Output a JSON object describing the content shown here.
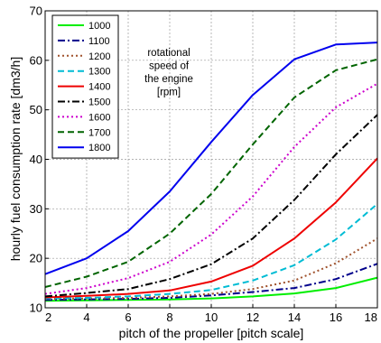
{
  "chart_data": {
    "type": "line",
    "xlabel": "pitch of the propeller   [pitch scale]",
    "ylabel": "hourly fuel consumption rate   [dm3/h]",
    "xlim": [
      2,
      18
    ],
    "ylim": [
      10,
      70
    ],
    "xticks": [
      2,
      4,
      6,
      8,
      10,
      12,
      14,
      16,
      18
    ],
    "yticks": [
      10,
      20,
      30,
      40,
      50,
      60,
      70
    ],
    "grid": true,
    "legend_position": "top-left",
    "annotation": [
      "rotational",
      "speed of",
      "the engine",
      "[rpm]"
    ],
    "x": [
      2,
      4,
      6,
      8,
      10,
      12,
      14,
      16,
      18
    ],
    "series": [
      {
        "name": "1000",
        "color": "#00ee00",
        "dash": "solid",
        "values": [
          11.4,
          11.5,
          11.6,
          11.7,
          11.9,
          12.3,
          12.9,
          14.0,
          16.1
        ]
      },
      {
        "name": "1100",
        "color": "#00008b",
        "dash": "dashdot",
        "values": [
          11.6,
          11.7,
          11.8,
          12.0,
          12.5,
          13.2,
          14.0,
          15.8,
          18.9
        ]
      },
      {
        "name": "1200",
        "color": "#a0522d",
        "dash": "dotted",
        "values": [
          11.8,
          11.9,
          12.0,
          12.3,
          12.8,
          13.8,
          15.5,
          19.0,
          24.0
        ]
      },
      {
        "name": "1300",
        "color": "#00bcd4",
        "dash": "dashed",
        "values": [
          11.9,
          12.0,
          12.3,
          12.8,
          13.6,
          15.5,
          18.6,
          23.8,
          31.0
        ]
      },
      {
        "name": "1400",
        "color": "#ee0000",
        "dash": "solid",
        "values": [
          12.1,
          12.4,
          12.8,
          13.5,
          15.3,
          18.5,
          24.0,
          31.3,
          40.2
        ]
      },
      {
        "name": "1500",
        "color": "#000000",
        "dash": "dashdot",
        "values": [
          12.3,
          13.0,
          13.8,
          15.8,
          18.8,
          24.0,
          31.8,
          41.0,
          49.0
        ]
      },
      {
        "name": "1600",
        "color": "#cc00cc",
        "dash": "dotted",
        "values": [
          12.8,
          14.0,
          16.0,
          19.3,
          24.8,
          32.5,
          42.5,
          50.5,
          55.3
        ]
      },
      {
        "name": "1700",
        "color": "#006400",
        "dash": "dashed",
        "values": [
          14.2,
          16.3,
          19.3,
          25.0,
          33.0,
          43.0,
          52.5,
          58.0,
          60.2
        ]
      },
      {
        "name": "1800",
        "color": "#0000ee",
        "dash": "solid",
        "values": [
          16.8,
          20.0,
          25.5,
          33.5,
          43.5,
          53.0,
          60.2,
          63.2,
          63.6
        ]
      }
    ]
  }
}
